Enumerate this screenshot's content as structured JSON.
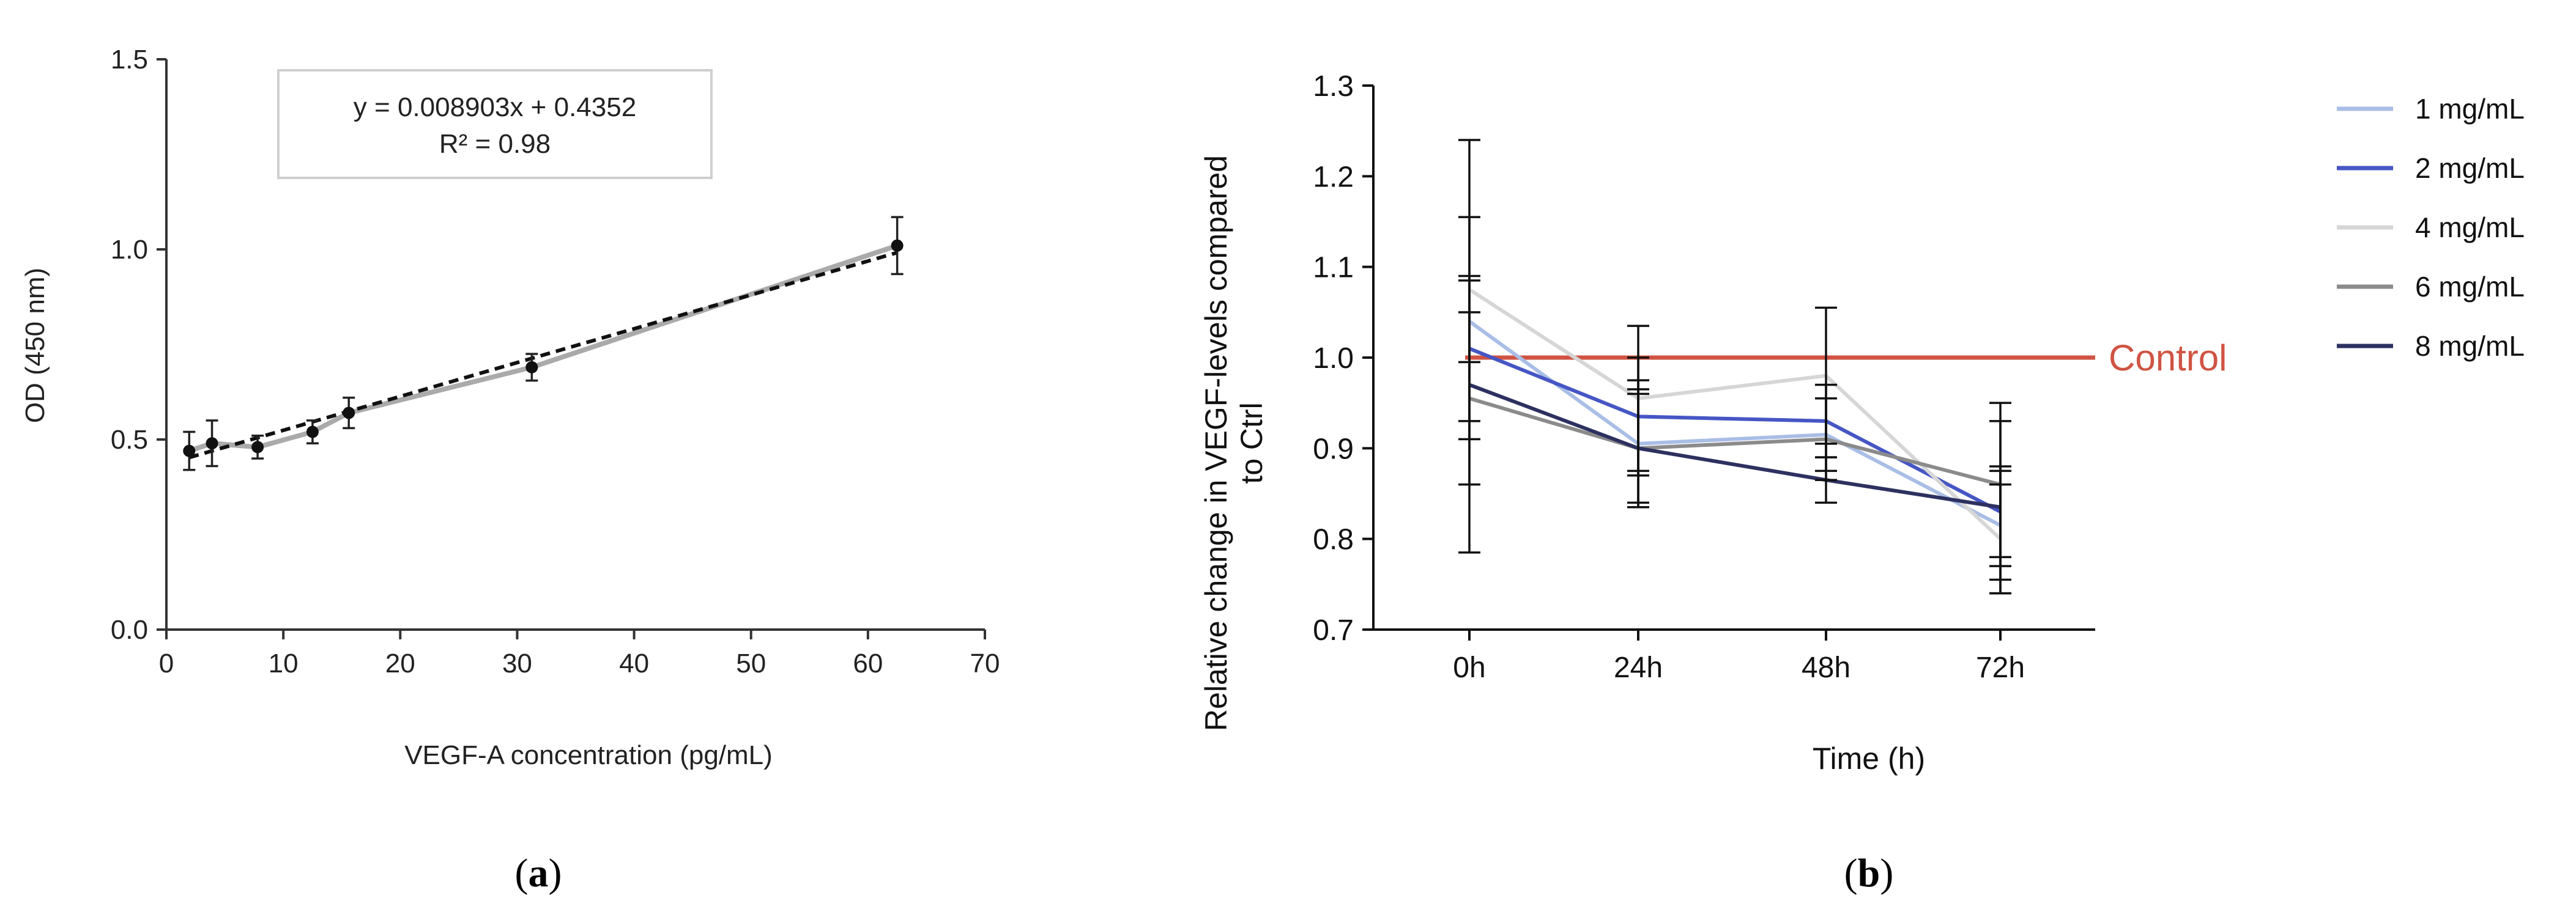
{
  "chart_data": [
    {
      "type": "line",
      "panel_label": "a",
      "xlabel": "VEGF-A concentration (pg/mL)",
      "ylabel": "OD (450 nm)",
      "xlim": [
        0,
        70
      ],
      "ylim": [
        0,
        1.5
      ],
      "xticks": [
        "0",
        "10",
        "20",
        "30",
        "40",
        "50",
        "60",
        "70"
      ],
      "yticks": [
        "0.0",
        "0.5",
        "1.0",
        "1.5"
      ],
      "equation": "y = 0.008903x + 0.4352",
      "r_squared": "R² = 0.98",
      "grid": false,
      "series": [
        {
          "style": "solid gray line with markers and error bars",
          "x": [
            1.95,
            3.9,
            7.8,
            12.5,
            15.6,
            31.25,
            62.5
          ],
          "y": [
            0.47,
            0.49,
            0.48,
            0.52,
            0.57,
            0.69,
            1.01
          ],
          "error": [
            0.05,
            0.06,
            0.03,
            0.03,
            0.04,
            0.035,
            0.075
          ],
          "color": "#aaaaaa"
        },
        {
          "style": "dashed black linear fit",
          "x": [
            1.95,
            62.5
          ],
          "y": [
            0.4526,
            0.9916
          ],
          "color": "#111111"
        }
      ]
    },
    {
      "type": "line",
      "panel_label": "b",
      "xlabel": "Time (h)",
      "ylabel": "Relative change in VEGF-levels compared to Ctrl",
      "ylim": [
        0.7,
        1.3
      ],
      "categories": [
        "0h",
        "24h",
        "48h",
        "72h"
      ],
      "yticks": [
        "0.7",
        "0.8",
        "0.9",
        "1.0",
        "1.1",
        "1.2",
        "1.3"
      ],
      "grid": false,
      "legend_position": "top-right",
      "reference_line": {
        "label": "Control",
        "y": 1.0,
        "color": "#cf5443"
      },
      "series": [
        {
          "name": "1 mg/mL",
          "color": "#a9bee6",
          "values": [
            1.04,
            0.905,
            0.915,
            0.815
          ],
          "error": [
            0.045,
            0.07,
            0.04,
            0.06
          ]
        },
        {
          "name": "2 mg/mL",
          "color": "#4656c4",
          "values": [
            1.01,
            0.935,
            0.93,
            0.83
          ],
          "error": [
            0.08,
            0.065,
            0.04,
            0.05
          ]
        },
        {
          "name": "4 mg/mL",
          "color": "#d6d6d6",
          "values": [
            1.075,
            0.955,
            0.98,
            0.8
          ],
          "error": [
            0.165,
            0.08,
            0.075,
            0.06
          ]
        },
        {
          "name": "6 mg/mL",
          "color": "#8b8b8b",
          "values": [
            0.955,
            0.9,
            0.91,
            0.86
          ],
          "error": [
            0.095,
            0.06,
            0.045,
            0.09
          ]
        },
        {
          "name": "8 mg/mL",
          "color": "#2d3160",
          "values": [
            0.97,
            0.9,
            0.865,
            0.835
          ],
          "error": [
            0.185,
            0.065,
            0.025,
            0.095
          ]
        }
      ]
    }
  ]
}
